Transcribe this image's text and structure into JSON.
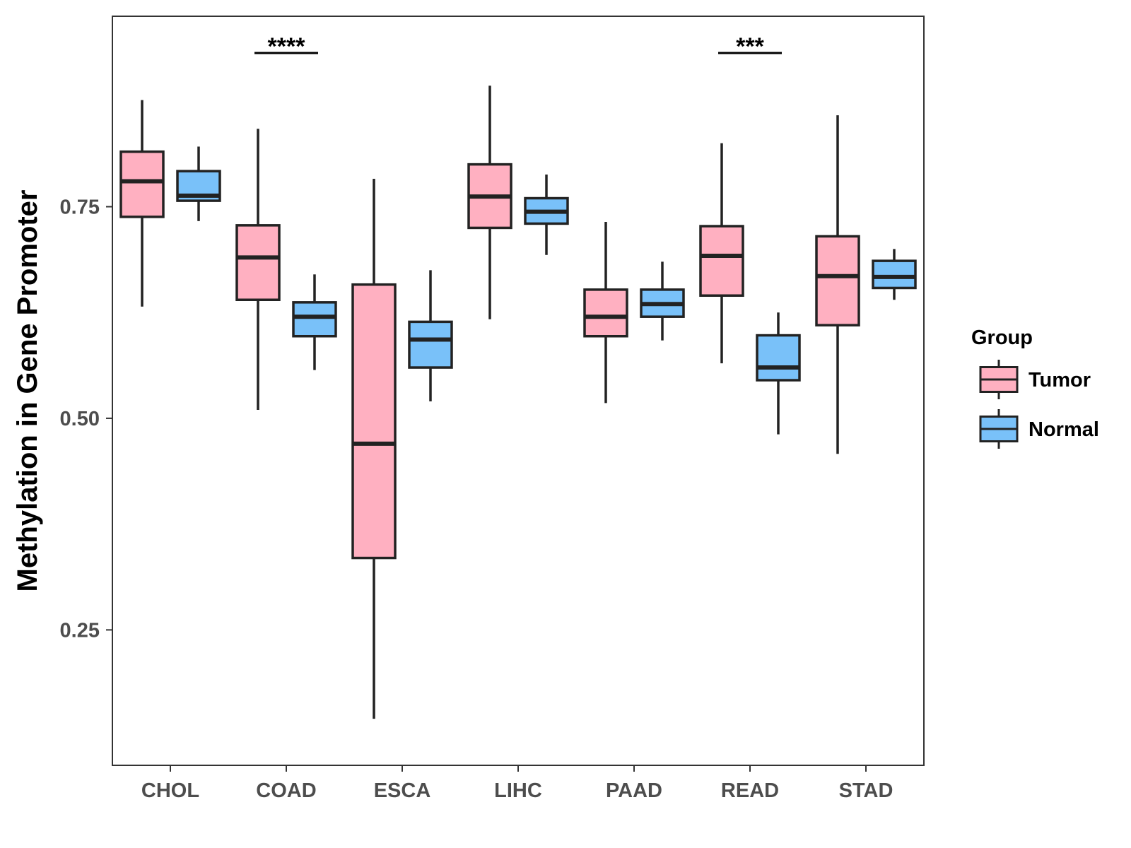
{
  "chart_data": {
    "type": "boxplot",
    "title": "",
    "xlabel": "",
    "ylabel": "Methylation in Gene Promoter",
    "ylim": [
      0.09,
      0.975
    ],
    "yticks": [
      0.25,
      0.5,
      0.75
    ],
    "ytick_labels": [
      "0.25",
      "0.50",
      "0.75"
    ],
    "categories": [
      "CHOL",
      "COAD",
      "ESCA",
      "LIHC",
      "PAAD",
      "READ",
      "STAD"
    ],
    "series": [
      {
        "name": "Tumor",
        "color": "#FFB0C1",
        "boxes": [
          {
            "category": "CHOL",
            "whisker_low": 0.632,
            "q1": 0.738,
            "median": 0.78,
            "q3": 0.815,
            "whisker_high": 0.876
          },
          {
            "category": "COAD",
            "whisker_low": 0.51,
            "q1": 0.64,
            "median": 0.69,
            "q3": 0.728,
            "whisker_high": 0.842
          },
          {
            "category": "ESCA",
            "whisker_low": 0.145,
            "q1": 0.335,
            "median": 0.47,
            "q3": 0.658,
            "whisker_high": 0.783
          },
          {
            "category": "LIHC",
            "whisker_low": 0.617,
            "q1": 0.725,
            "median": 0.762,
            "q3": 0.8,
            "whisker_high": 0.893
          },
          {
            "category": "PAAD",
            "whisker_low": 0.518,
            "q1": 0.597,
            "median": 0.62,
            "q3": 0.652,
            "whisker_high": 0.732
          },
          {
            "category": "READ",
            "whisker_low": 0.565,
            "q1": 0.645,
            "median": 0.692,
            "q3": 0.727,
            "whisker_high": 0.825
          },
          {
            "category": "STAD",
            "whisker_low": 0.458,
            "q1": 0.61,
            "median": 0.668,
            "q3": 0.715,
            "whisker_high": 0.858
          }
        ]
      },
      {
        "name": "Normal",
        "color": "#79C1F9",
        "boxes": [
          {
            "category": "CHOL",
            "whisker_low": 0.733,
            "q1": 0.757,
            "median": 0.763,
            "q3": 0.792,
            "whisker_high": 0.821
          },
          {
            "category": "COAD",
            "whisker_low": 0.557,
            "q1": 0.597,
            "median": 0.62,
            "q3": 0.637,
            "whisker_high": 0.67
          },
          {
            "category": "ESCA",
            "whisker_low": 0.52,
            "q1": 0.56,
            "median": 0.593,
            "q3": 0.614,
            "whisker_high": 0.675
          },
          {
            "category": "LIHC",
            "whisker_low": 0.693,
            "q1": 0.73,
            "median": 0.744,
            "q3": 0.76,
            "whisker_high": 0.788
          },
          {
            "category": "PAAD",
            "whisker_low": 0.592,
            "q1": 0.62,
            "median": 0.635,
            "q3": 0.652,
            "whisker_high": 0.685
          },
          {
            "category": "READ",
            "whisker_low": 0.481,
            "q1": 0.545,
            "median": 0.56,
            "q3": 0.598,
            "whisker_high": 0.625
          },
          {
            "category": "STAD",
            "whisker_low": 0.64,
            "q1": 0.654,
            "median": 0.667,
            "q3": 0.686,
            "whisker_high": 0.7
          }
        ]
      }
    ],
    "annotations": [
      {
        "category": "COAD",
        "label": "****"
      },
      {
        "category": "READ",
        "label": "***"
      }
    ],
    "legend": {
      "title": "Group",
      "position": "right",
      "entries": [
        "Tumor",
        "Normal"
      ]
    },
    "grid": false
  }
}
